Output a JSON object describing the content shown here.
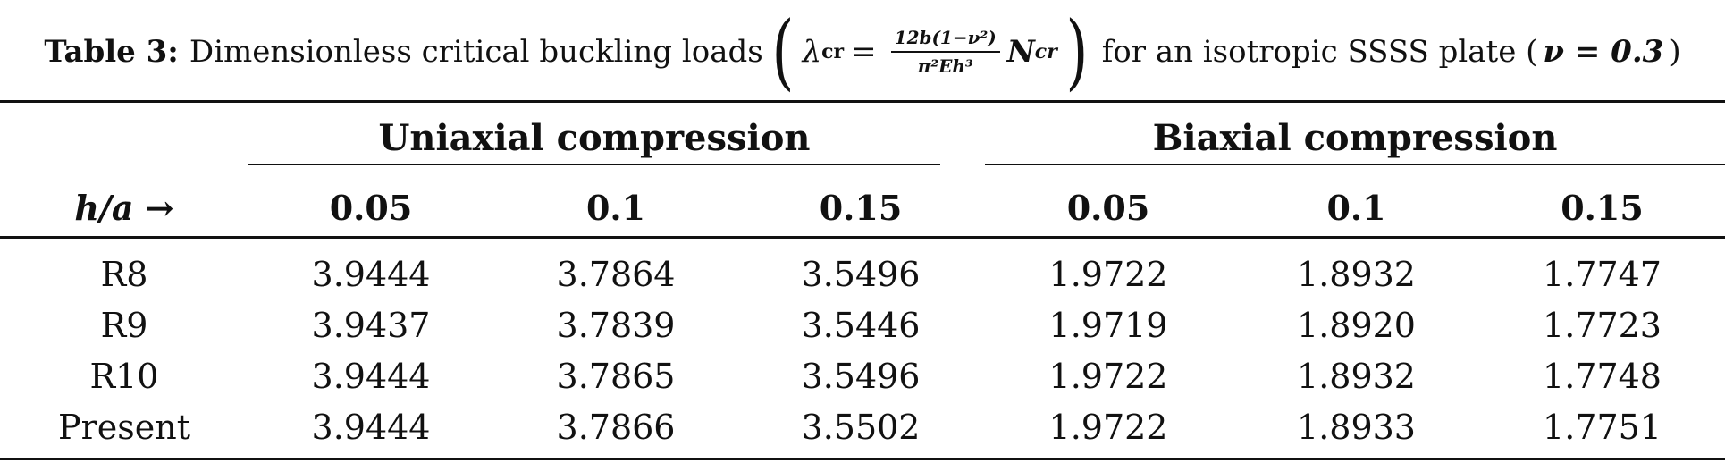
{
  "caption": {
    "label": "Table 3:",
    "text_before": "Dimensionless critical buckling loads",
    "lambda": "λ",
    "lambda_sub": "cr",
    "equals": "=",
    "frac_num": "12b(1−ν²)",
    "frac_den": "π²Eh³",
    "N": "N",
    "N_sub": "cr",
    "text_after": "for an isotropic SSSS plate (",
    "nu_expr": "ν = 0.3",
    "close_paren": ")"
  },
  "table": {
    "groups": [
      "Uniaxial compression",
      "Biaxial compression"
    ],
    "row_header": "h/a →",
    "columns": [
      "0.05",
      "0.1",
      "0.15",
      "0.05",
      "0.1",
      "0.15"
    ],
    "rows": [
      {
        "label": "R8",
        "values": [
          "3.9444",
          "3.7864",
          "3.5496",
          "1.9722",
          "1.8932",
          "1.7747"
        ]
      },
      {
        "label": "R9",
        "values": [
          "3.9437",
          "3.7839",
          "3.5446",
          "1.9719",
          "1.8920",
          "1.7723"
        ]
      },
      {
        "label": "R10",
        "values": [
          "3.9444",
          "3.7865",
          "3.5496",
          "1.9722",
          "1.8932",
          "1.7748"
        ]
      },
      {
        "label": "Present",
        "values": [
          "3.9444",
          "3.7866",
          "3.5502",
          "1.9722",
          "1.8933",
          "1.7751"
        ]
      }
    ]
  }
}
